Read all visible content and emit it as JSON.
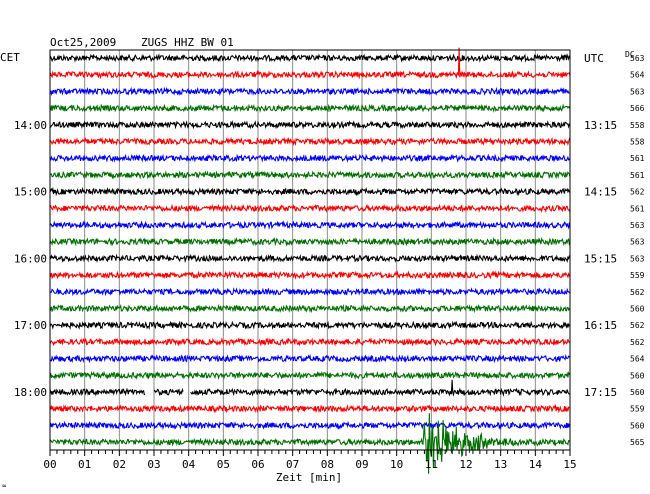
{
  "header": {
    "date": "Oct25,2009",
    "station": "ZUGS HHZ BW 01",
    "left_tz": "CET",
    "right_tz": "UTC",
    "dc_label": "DC"
  },
  "footer": {
    "x_axis_title": "Zeit [min]",
    "corner_mark": "≈"
  },
  "chart_data": {
    "type": "line",
    "title": "Oct25,2009   ZUGS HHZ BW 01",
    "xlabel": "Zeit [min]",
    "ylabel": "",
    "xlim": [
      0,
      15
    ],
    "x_ticks": [
      "00",
      "01",
      "02",
      "03",
      "04",
      "05",
      "06",
      "07",
      "08",
      "09",
      "10",
      "11",
      "12",
      "13",
      "14",
      "15"
    ],
    "grid": true,
    "trace_colors": [
      "#000000",
      "#ff0000",
      "#0000ff",
      "#007000"
    ],
    "hour_labels_left": [
      {
        "row": 4,
        "label": "14:00"
      },
      {
        "row": 8,
        "label": "15:00"
      },
      {
        "row": 12,
        "label": "16:00"
      },
      {
        "row": 16,
        "label": "17:00"
      },
      {
        "row": 20,
        "label": "18:00"
      }
    ],
    "hour_labels_right": [
      {
        "row": 0,
        "label": "UTC"
      },
      {
        "row": 4,
        "label": "13:15"
      },
      {
        "row": 8,
        "label": "14:15"
      },
      {
        "row": 12,
        "label": "15:15"
      },
      {
        "row": 16,
        "label": "16:15"
      },
      {
        "row": 20,
        "label": "17:15"
      }
    ],
    "dc_offsets": [
      "563",
      "564",
      "563",
      "566",
      "558",
      "558",
      "561",
      "561",
      "562",
      "561",
      "563",
      "563",
      "563",
      "559",
      "562",
      "560",
      "562",
      "562",
      "564",
      "560",
      "560",
      "559",
      "560",
      "565"
    ],
    "events": [
      {
        "row": 1,
        "minute": 11.8,
        "amplitude": 1.8,
        "kind": "spike"
      },
      {
        "row": 20,
        "minute": 11.6,
        "amplitude": 0.9,
        "kind": "spike"
      },
      {
        "row": 23,
        "minute": 10.75,
        "amplitude": 2.6,
        "kind": "quake"
      }
    ],
    "gaps": [
      {
        "row": 20,
        "start": 2.75,
        "end": 3.0
      },
      {
        "row": 20,
        "start": 3.85,
        "end": 4.05
      }
    ]
  }
}
